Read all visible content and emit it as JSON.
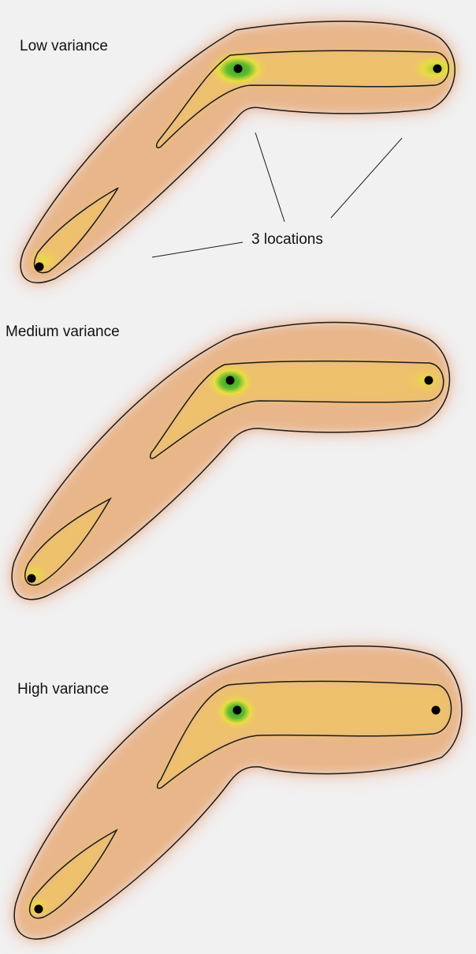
{
  "figure": {
    "annotation_label": "3 locations",
    "panels": [
      {
        "title": "Low variance"
      },
      {
        "title": "Medium variance"
      },
      {
        "title": "High variance"
      }
    ]
  },
  "colors": {
    "background": "#f1f1f1",
    "halo": "#e9a294",
    "outer_fill": "#e8b68a",
    "inner_fill": "#eec16d",
    "hotspot": "#2faa22",
    "glow": "#e7e23b",
    "outline": "#1a1a1a",
    "point": "#000000"
  }
}
